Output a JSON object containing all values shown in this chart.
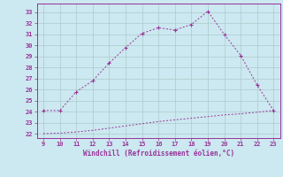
{
  "x_upper": [
    9,
    10,
    11,
    12,
    13,
    14,
    15,
    16,
    17,
    18,
    19,
    20,
    21,
    22,
    23
  ],
  "y_upper": [
    24.1,
    24.1,
    25.8,
    26.8,
    28.4,
    29.8,
    31.1,
    31.6,
    31.4,
    31.9,
    33.1,
    31.0,
    29.1,
    26.4,
    24.1
  ],
  "x_lower": [
    9,
    10,
    11,
    12,
    13,
    14,
    15,
    16,
    17,
    18,
    19,
    20,
    21,
    22,
    23
  ],
  "y_lower": [
    22.0,
    22.05,
    22.15,
    22.3,
    22.5,
    22.7,
    22.9,
    23.1,
    23.25,
    23.4,
    23.55,
    23.7,
    23.8,
    23.95,
    24.1
  ],
  "line_color": "#993399",
  "bg_color": "#cce8f0",
  "grid_color": "#aacccc",
  "xlabel": "Windchill (Refroidissement éolien,°C)",
  "yticks": [
    22,
    23,
    24,
    25,
    26,
    27,
    28,
    29,
    30,
    31,
    32,
    33
  ],
  "xticks": [
    9,
    10,
    11,
    12,
    13,
    14,
    15,
    16,
    17,
    18,
    19,
    20,
    21,
    22,
    23
  ],
  "ylim": [
    21.6,
    33.8
  ],
  "xlim": [
    8.6,
    23.4
  ]
}
